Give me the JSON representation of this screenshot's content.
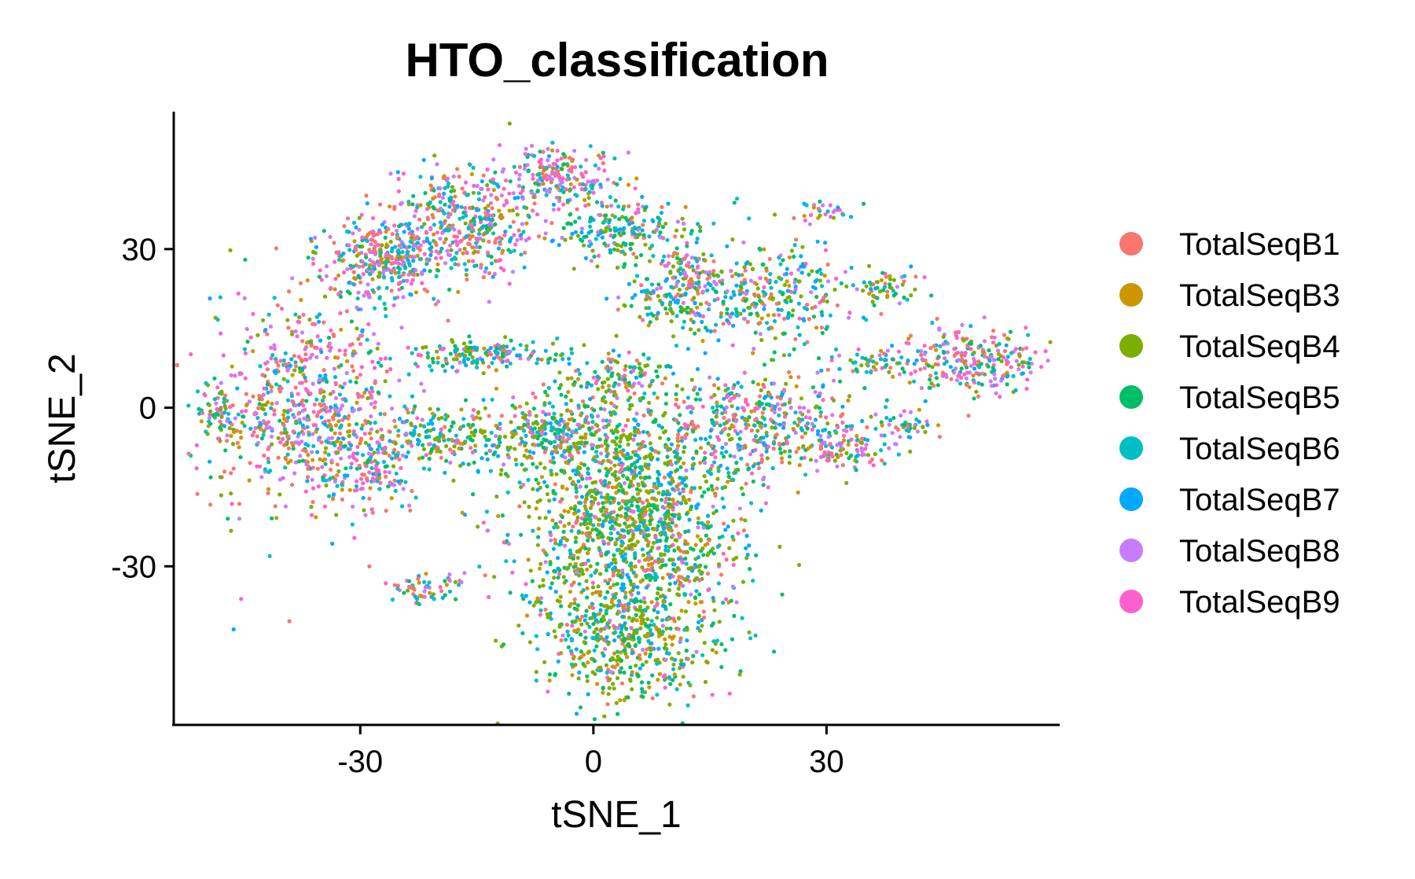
{
  "chart_data": {
    "type": "scatter",
    "title": "HTO_classification",
    "xlabel": "tSNE_1",
    "ylabel": "tSNE_2",
    "xlim": [
      -54,
      60
    ],
    "ylim": [
      -60,
      56
    ],
    "x_ticks": [
      -30,
      0,
      30
    ],
    "y_ticks": [
      30,
      0,
      -30
    ],
    "x_tick_labels": [
      "-30",
      "0",
      "30"
    ],
    "y_tick_labels": [
      "30",
      "0",
      "-30"
    ],
    "grid": false,
    "legend_position": "right",
    "series": [
      {
        "name": "TotalSeqB1",
        "color": "#F8766D"
      },
      {
        "name": "TotalSeqB3",
        "color": "#CD9600"
      },
      {
        "name": "TotalSeqB4",
        "color": "#7CAE00"
      },
      {
        "name": "TotalSeqB5",
        "color": "#00BE67"
      },
      {
        "name": "TotalSeqB6",
        "color": "#00BFC4"
      },
      {
        "name": "TotalSeqB7",
        "color": "#00A9FF"
      },
      {
        "name": "TotalSeqB8",
        "color": "#C77CFF"
      },
      {
        "name": "TotalSeqB9",
        "color": "#FF61CC"
      }
    ],
    "clusters": [
      {
        "center": [
          -37,
          0
        ],
        "spread": [
          6,
          10
        ],
        "count": 700,
        "mix": [
          3,
          1,
          1,
          1,
          2,
          1,
          2,
          3
        ]
      },
      {
        "center": [
          -28,
          -11
        ],
        "spread": [
          3,
          4
        ],
        "count": 120,
        "mix": [
          2,
          1,
          1,
          1,
          2,
          1,
          2,
          2
        ]
      },
      {
        "center": [
          -48,
          -1
        ],
        "spread": [
          1.5,
          3
        ],
        "count": 60,
        "mix": [
          1,
          1,
          2,
          2,
          2,
          1,
          1,
          1
        ]
      },
      {
        "center": [
          -27,
          28
        ],
        "spread": [
          4,
          4
        ],
        "count": 350,
        "mix": [
          2,
          1,
          1,
          1,
          2,
          1,
          2,
          2
        ]
      },
      {
        "center": [
          -16,
          35
        ],
        "spread": [
          5,
          5
        ],
        "count": 400,
        "mix": [
          2,
          1,
          1,
          1,
          2,
          1,
          2,
          2
        ]
      },
      {
        "center": [
          -5,
          44
        ],
        "spread": [
          4,
          3
        ],
        "count": 200,
        "mix": [
          2,
          1,
          1,
          1,
          2,
          1,
          3,
          3
        ]
      },
      {
        "center": [
          4,
          33
        ],
        "spread": [
          4,
          3
        ],
        "count": 200,
        "mix": [
          1,
          1,
          3,
          3,
          2,
          2,
          1,
          1
        ]
      },
      {
        "center": [
          -14,
          10
        ],
        "spread": [
          5,
          1.5
        ],
        "count": 160,
        "mix": [
          1,
          1,
          2,
          2,
          2,
          2,
          1,
          1
        ]
      },
      {
        "center": [
          3,
          5
        ],
        "spread": [
          4,
          3
        ],
        "count": 150,
        "mix": [
          1,
          1,
          3,
          3,
          2,
          2,
          1,
          1
        ]
      },
      {
        "center": [
          -20,
          -6
        ],
        "spread": [
          5,
          3
        ],
        "count": 200,
        "mix": [
          1,
          1,
          3,
          3,
          2,
          2,
          1,
          1
        ]
      },
      {
        "center": [
          -5,
          -5
        ],
        "spread": [
          4,
          3
        ],
        "count": 250,
        "mix": [
          1,
          1,
          4,
          3,
          2,
          2,
          1,
          1
        ]
      },
      {
        "center": [
          5,
          -20
        ],
        "spread": [
          7,
          11
        ],
        "count": 1400,
        "mix": [
          1,
          2,
          5,
          4,
          2,
          2,
          1,
          1
        ]
      },
      {
        "center": [
          5,
          -43
        ],
        "spread": [
          6,
          6
        ],
        "count": 500,
        "mix": [
          1,
          2,
          5,
          4,
          2,
          2,
          1,
          1
        ]
      },
      {
        "center": [
          -21,
          -34
        ],
        "spread": [
          3,
          1.5
        ],
        "count": 60,
        "mix": [
          2,
          1,
          1,
          1,
          2,
          1,
          2,
          2
        ]
      },
      {
        "center": [
          12,
          20
        ],
        "spread": [
          5,
          2.5
        ],
        "count": 150,
        "mix": [
          1,
          1,
          2,
          2,
          2,
          2,
          1,
          1
        ]
      },
      {
        "center": [
          12,
          26
        ],
        "spread": [
          2,
          2
        ],
        "count": 80,
        "mix": [
          2,
          1,
          1,
          1,
          2,
          1,
          2,
          2
        ]
      },
      {
        "center": [
          24,
          22
        ],
        "spread": [
          5,
          5
        ],
        "count": 250,
        "mix": [
          1,
          2,
          2,
          2,
          2,
          2,
          1,
          1
        ]
      },
      {
        "center": [
          23,
          -3
        ],
        "spread": [
          6,
          5
        ],
        "count": 400,
        "mix": [
          2,
          1,
          2,
          2,
          2,
          2,
          2,
          2
        ]
      },
      {
        "center": [
          33,
          -8
        ],
        "spread": [
          3,
          2
        ],
        "count": 80,
        "mix": [
          2,
          1,
          1,
          1,
          2,
          1,
          2,
          2
        ]
      },
      {
        "center": [
          29,
          37
        ],
        "spread": [
          2,
          1
        ],
        "count": 30,
        "mix": [
          2,
          1,
          1,
          1,
          2,
          1,
          2,
          2
        ]
      },
      {
        "center": [
          38,
          23
        ],
        "spread": [
          2.5,
          1.5
        ],
        "count": 60,
        "mix": [
          1,
          1,
          2,
          2,
          2,
          2,
          1,
          1
        ]
      },
      {
        "center": [
          37,
          9
        ],
        "spread": [
          3,
          1
        ],
        "count": 50,
        "mix": [
          1,
          1,
          2,
          2,
          2,
          2,
          1,
          1
        ]
      },
      {
        "center": [
          49,
          9
        ],
        "spread": [
          5,
          3.5
        ],
        "count": 250,
        "mix": [
          2,
          1,
          1,
          1,
          2,
          1,
          2,
          3
        ]
      },
      {
        "center": [
          40,
          -3
        ],
        "spread": [
          2,
          1.5
        ],
        "count": 40,
        "mix": [
          1,
          1,
          1,
          1,
          2,
          1,
          2,
          2
        ]
      }
    ]
  }
}
